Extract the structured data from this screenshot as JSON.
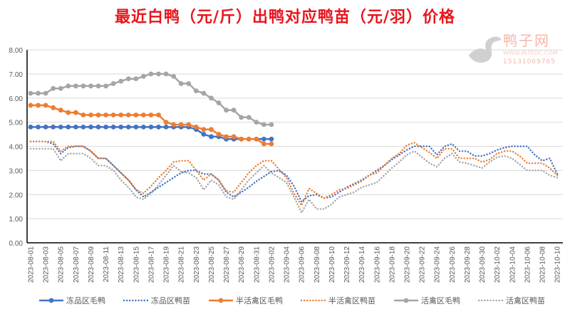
{
  "chart_data": {
    "type": "line",
    "title": "最近白鸭（元/斤）出鸭对应鸭苗（元/羽）价格",
    "xlabel": "",
    "ylabel": "",
    "ylim": [
      0,
      8
    ],
    "yticks": [
      "0.00",
      "1.00",
      "2.00",
      "3.00",
      "4.00",
      "5.00",
      "6.00",
      "7.00",
      "8.00"
    ],
    "grid": true,
    "legend_position": "bottom",
    "x_start": "2023-08-01",
    "x_days": 71,
    "x_tick_every": 2,
    "series": [
      {
        "name": "冻品区毛鸭",
        "color": "#4472C4",
        "style": "solid-marker",
        "values": [
          4.8,
          4.8,
          4.8,
          4.8,
          4.8,
          4.8,
          4.8,
          4.8,
          4.8,
          4.8,
          4.8,
          4.8,
          4.8,
          4.8,
          4.8,
          4.8,
          4.8,
          4.8,
          4.8,
          4.8,
          4.8,
          4.8,
          4.7,
          4.5,
          4.4,
          4.4,
          4.3,
          4.3,
          4.3,
          4.3,
          4.3,
          4.3,
          4.3
        ]
      },
      {
        "name": "冻品区鸭苗",
        "color": "#4472C4",
        "style": "dotted",
        "values": [
          4.2,
          4.2,
          4.2,
          4.1,
          3.7,
          3.95,
          4.0,
          4.0,
          3.8,
          3.5,
          3.5,
          3.2,
          2.9,
          2.6,
          2.2,
          1.9,
          2.1,
          2.3,
          2.5,
          2.7,
          2.9,
          3.0,
          3.0,
          2.85,
          2.85,
          2.6,
          2.1,
          1.9,
          2.1,
          2.3,
          2.55,
          2.75,
          2.95,
          3.0,
          2.8,
          2.35,
          1.7,
          1.95,
          2.0,
          1.85,
          1.9,
          2.1,
          2.3,
          2.45,
          2.6,
          2.8,
          3.0,
          3.2,
          3.45,
          3.65,
          3.85,
          4.0,
          4.0,
          4.0,
          3.65,
          4.0,
          4.1,
          3.8,
          3.8,
          3.6,
          3.6,
          3.7,
          3.85,
          3.95,
          4.0,
          4.0,
          4.0,
          3.65,
          3.4,
          3.5,
          2.85
        ]
      },
      {
        "name": "半活禽区毛鸭",
        "color": "#ED7D31",
        "style": "solid-marker",
        "values": [
          5.7,
          5.7,
          5.7,
          5.6,
          5.5,
          5.4,
          5.4,
          5.3,
          5.3,
          5.3,
          5.3,
          5.3,
          5.3,
          5.3,
          5.3,
          5.3,
          5.3,
          5.3,
          5.0,
          4.9,
          4.9,
          4.9,
          4.8,
          4.7,
          4.7,
          4.5,
          4.4,
          4.4,
          4.3,
          4.3,
          4.3,
          4.1,
          4.1
        ]
      },
      {
        "name": "半活禽区鸭苗",
        "color": "#ED7D31",
        "style": "dotted",
        "values": [
          4.2,
          4.2,
          4.2,
          4.2,
          3.8,
          4.0,
          4.0,
          4.0,
          3.8,
          3.5,
          3.5,
          3.2,
          2.9,
          2.6,
          2.2,
          2.05,
          2.35,
          2.7,
          3.0,
          3.35,
          3.4,
          3.4,
          3.0,
          2.6,
          2.85,
          2.6,
          2.15,
          2.1,
          2.5,
          2.9,
          3.2,
          3.4,
          3.4,
          3.05,
          2.7,
          2.05,
          1.55,
          2.25,
          2.05,
          1.85,
          2.0,
          2.2,
          2.25,
          2.4,
          2.55,
          2.8,
          2.9,
          3.2,
          3.5,
          3.7,
          4.05,
          4.15,
          3.95,
          3.75,
          3.5,
          3.9,
          3.9,
          3.5,
          3.5,
          3.5,
          3.35,
          3.45,
          3.7,
          3.8,
          3.8,
          3.6,
          3.3,
          3.3,
          3.3,
          3.1,
          2.8
        ]
      },
      {
        "name": "活禽区毛鸭",
        "color": "#A5A5A5",
        "style": "solid-marker",
        "values": [
          6.2,
          6.2,
          6.2,
          6.4,
          6.4,
          6.5,
          6.5,
          6.5,
          6.5,
          6.5,
          6.5,
          6.6,
          6.7,
          6.8,
          6.8,
          6.9,
          7.0,
          7.0,
          7.0,
          6.9,
          6.6,
          6.6,
          6.3,
          6.2,
          6.0,
          5.8,
          5.5,
          5.5,
          5.2,
          5.2,
          5.0,
          4.9,
          4.9
        ]
      },
      {
        "name": "活禽区鸭苗",
        "color": "#A5A5A5",
        "style": "dotted",
        "values": [
          3.9,
          3.9,
          3.9,
          3.9,
          3.4,
          3.7,
          3.7,
          3.7,
          3.5,
          3.2,
          3.2,
          3.0,
          2.6,
          2.3,
          1.9,
          1.8,
          2.05,
          2.4,
          2.8,
          3.2,
          2.95,
          2.9,
          2.7,
          2.2,
          2.6,
          2.4,
          1.9,
          1.8,
          2.2,
          2.6,
          2.9,
          3.2,
          2.9,
          2.7,
          2.5,
          1.9,
          1.25,
          1.8,
          1.4,
          1.4,
          1.6,
          1.9,
          2.0,
          2.1,
          2.3,
          2.4,
          2.5,
          2.8,
          3.1,
          3.35,
          3.65,
          3.8,
          3.55,
          3.3,
          3.15,
          3.5,
          3.7,
          3.35,
          3.3,
          3.2,
          3.1,
          3.35,
          3.55,
          3.6,
          3.5,
          3.25,
          3.0,
          3.0,
          3.0,
          2.8,
          2.7
        ]
      }
    ]
  },
  "watermark": {
    "name": "鸭子网",
    "url": "WWW.INTEDC.COM",
    "phone": "15131069765"
  }
}
